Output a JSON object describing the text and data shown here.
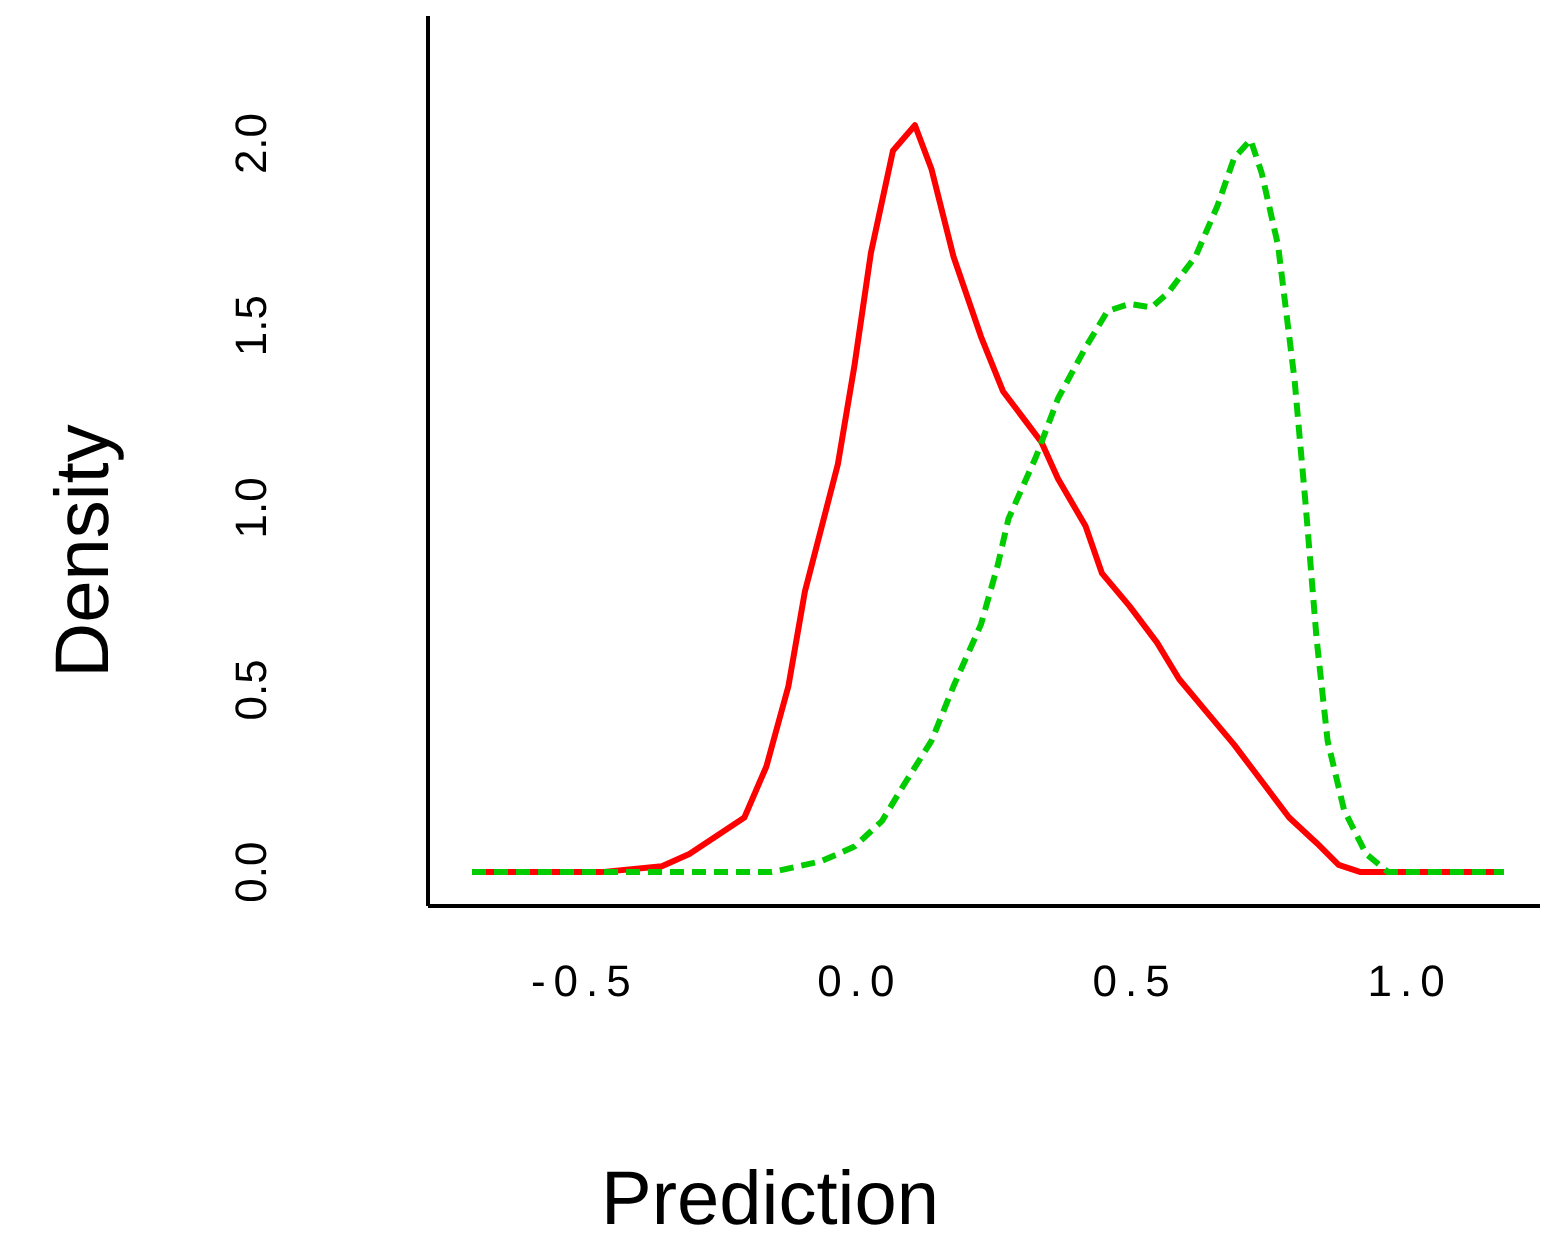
{
  "chart_data": {
    "type": "line",
    "xlabel": "Prediction",
    "ylabel": "Density",
    "xlim": [
      -0.785,
      1.236
    ],
    "ylim": [
      -0.093,
      2.35
    ],
    "xticks": [
      -0.5,
      {
        "value": 0,
        "label": "0.0"
      },
      0.5,
      {
        "value": 1,
        "label": "1.0"
      }
    ],
    "yticks": [
      {
        "value": 0,
        "label": "0.0"
      },
      0.5,
      {
        "value": 1,
        "label": "1.0"
      },
      1.5,
      {
        "value": 2,
        "label": "2.0"
      }
    ],
    "series": [
      {
        "color": "#ff0000",
        "line_style": "solid",
        "x": [
          -0.705,
          -0.47,
          -0.36,
          -0.31,
          -0.26,
          -0.21,
          -0.17,
          -0.13,
          -0.1,
          -0.04,
          -0.01,
          0.02,
          0.06,
          0.1,
          0.13,
          0.17,
          0.22,
          0.26,
          0.3,
          0.33,
          0.36,
          0.41,
          0.44,
          0.49,
          0.54,
          0.58,
          0.63,
          0.68,
          0.73,
          0.78,
          0.83,
          0.87,
          0.91,
          1.17
        ],
        "values": [
          0,
          0,
          0.016,
          0.05,
          0.1,
          0.15,
          0.29,
          0.51,
          0.77,
          1.12,
          1.39,
          1.7,
          1.98,
          2.05,
          1.93,
          1.69,
          1.47,
          1.32,
          1.24,
          1.18,
          1.08,
          0.95,
          0.82,
          0.73,
          0.63,
          0.53,
          0.44,
          0.35,
          0.25,
          0.15,
          0.08,
          0.02,
          0,
          0
        ]
      },
      {
        "color": "#00cc00",
        "line_style": "dashed",
        "x": [
          -0.705,
          -0.16,
          -0.07,
          -0.01,
          0.04,
          0.08,
          0.13,
          0.17,
          0.22,
          0.25,
          0.27,
          0.32,
          0.36,
          0.41,
          0.45,
          0.49,
          0.53,
          0.56,
          0.61,
          0.65,
          0.68,
          0.71,
          0.73,
          0.76,
          0.79,
          0.81,
          0.83,
          0.85,
          0.88,
          0.92,
          0.96,
          1.17
        ],
        "values": [
          0,
          0,
          0.03,
          0.07,
          0.14,
          0.24,
          0.36,
          0.51,
          0.68,
          0.84,
          0.97,
          1.14,
          1.3,
          1.44,
          1.54,
          1.56,
          1.55,
          1.59,
          1.69,
          1.83,
          1.96,
          2.01,
          1.92,
          1.72,
          1.35,
          1.01,
          0.64,
          0.36,
          0.17,
          0.05,
          0,
          0
        ]
      }
    ]
  }
}
